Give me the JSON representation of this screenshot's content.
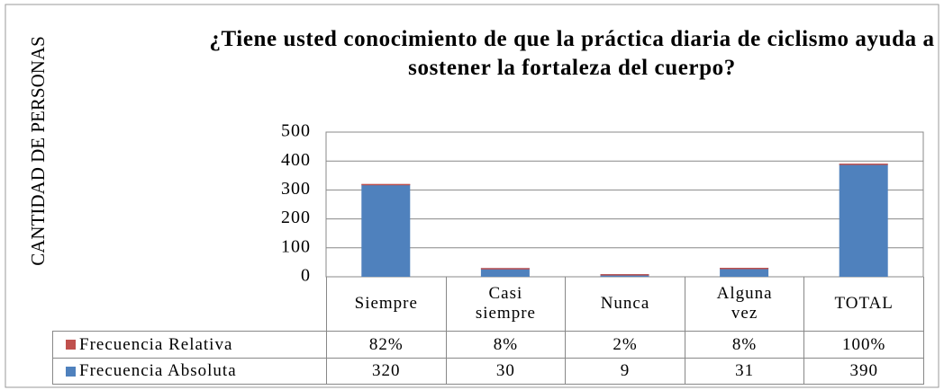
{
  "chart_data": {
    "type": "bar",
    "stacked": true,
    "title": "¿Tiene usted conocimiento de que la práctica diaria de ciclismo ayuda a sostener la fortaleza del cuerpo?",
    "y_label": "CANTIDAD DE PERSONAS",
    "categories": [
      "Siempre",
      "Casi siempre",
      "Nunca",
      "Alguna vez",
      "TOTAL"
    ],
    "series": [
      {
        "name": "Frecuencia Relativa",
        "color": "#c0504d",
        "values": [
          0.82,
          0.08,
          0.02,
          0.08,
          1
        ],
        "value_labels": [
          "82%",
          "8%",
          "2%",
          "8%",
          "100%"
        ]
      },
      {
        "name": "Frecuencia Absoluta",
        "color": "#4f81bd",
        "values": [
          320,
          30,
          9,
          31,
          390
        ]
      }
    ],
    "ylim": [
      0,
      500
    ],
    "yticks": [
      0,
      100,
      200,
      300,
      400,
      500
    ],
    "grid": true
  }
}
